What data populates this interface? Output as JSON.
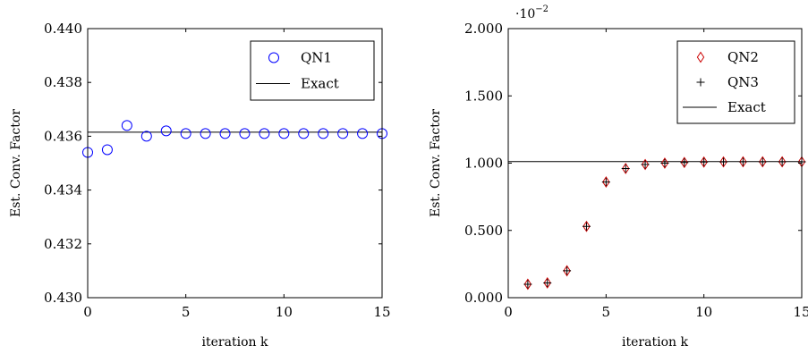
{
  "chart_data": [
    {
      "type": "scatter",
      "xlabel": "iteration k",
      "ylabel": "Est. Conv. Factor",
      "xlim": [
        0,
        15
      ],
      "ylim": [
        0.43,
        0.44
      ],
      "xticks": [
        0,
        5,
        10,
        15
      ],
      "xtick_labels": [
        "0",
        "5",
        "10",
        "15"
      ],
      "yticks": [
        0.43,
        0.432,
        0.434,
        0.436,
        0.438,
        0.44
      ],
      "ytick_labels": [
        "0.430",
        "0.432",
        "0.434",
        "0.436",
        "0.438",
        "0.440"
      ],
      "grid": false,
      "legend_position": "top-right",
      "series": [
        {
          "name": "QN1",
          "marker": "circle",
          "color": "#0000ff",
          "x": [
            0,
            1,
            2,
            3,
            4,
            5,
            6,
            7,
            8,
            9,
            10,
            11,
            12,
            13,
            14,
            15
          ],
          "y": [
            0.4354,
            0.4355,
            0.4364,
            0.436,
            0.4362,
            0.4361,
            0.4361,
            0.4361,
            0.4361,
            0.4361,
            0.4361,
            0.4361,
            0.4361,
            0.4361,
            0.4361,
            0.4361
          ]
        }
      ],
      "reference_lines": [
        {
          "name": "Exact",
          "y": 0.43615,
          "color": "#000000"
        }
      ]
    },
    {
      "type": "scatter",
      "xlabel": "iteration k",
      "ylabel": "Est. Conv. Factor",
      "y_scale_label": "·10",
      "y_scale_exponent": "−2",
      "xlim": [
        0,
        15
      ],
      "ylim": [
        0,
        2
      ],
      "xticks": [
        0,
        5,
        10,
        15
      ],
      "xtick_labels": [
        "0",
        "5",
        "10",
        "15"
      ],
      "yticks": [
        0,
        0.5,
        1,
        1.5,
        2
      ],
      "ytick_labels": [
        "0.000",
        "0.500",
        "1.000",
        "1.500",
        "2.000"
      ],
      "grid": false,
      "legend_position": "top-right",
      "series": [
        {
          "name": "QN2",
          "marker": "diamond",
          "color": "#cc0000",
          "x": [
            1,
            2,
            3,
            4,
            5,
            6,
            7,
            8,
            9,
            10,
            11,
            12,
            13,
            14,
            15
          ],
          "y": [
            0.1,
            0.11,
            0.2,
            0.53,
            0.86,
            0.96,
            0.99,
            1.0,
            1.005,
            1.008,
            1.009,
            1.01,
            1.01,
            1.01,
            1.01
          ]
        },
        {
          "name": "QN3",
          "marker": "plus",
          "color": "#000000",
          "x": [
            1,
            2,
            3,
            4,
            5,
            6,
            7,
            8,
            9,
            10,
            11,
            12,
            13,
            14,
            15
          ],
          "y": [
            0.1,
            0.11,
            0.2,
            0.53,
            0.86,
            0.96,
            0.99,
            1.0,
            1.005,
            1.008,
            1.009,
            1.01,
            1.01,
            1.01,
            1.01
          ]
        }
      ],
      "reference_lines": [
        {
          "name": "Exact",
          "y": 1.012,
          "color": "#000000"
        }
      ]
    }
  ]
}
